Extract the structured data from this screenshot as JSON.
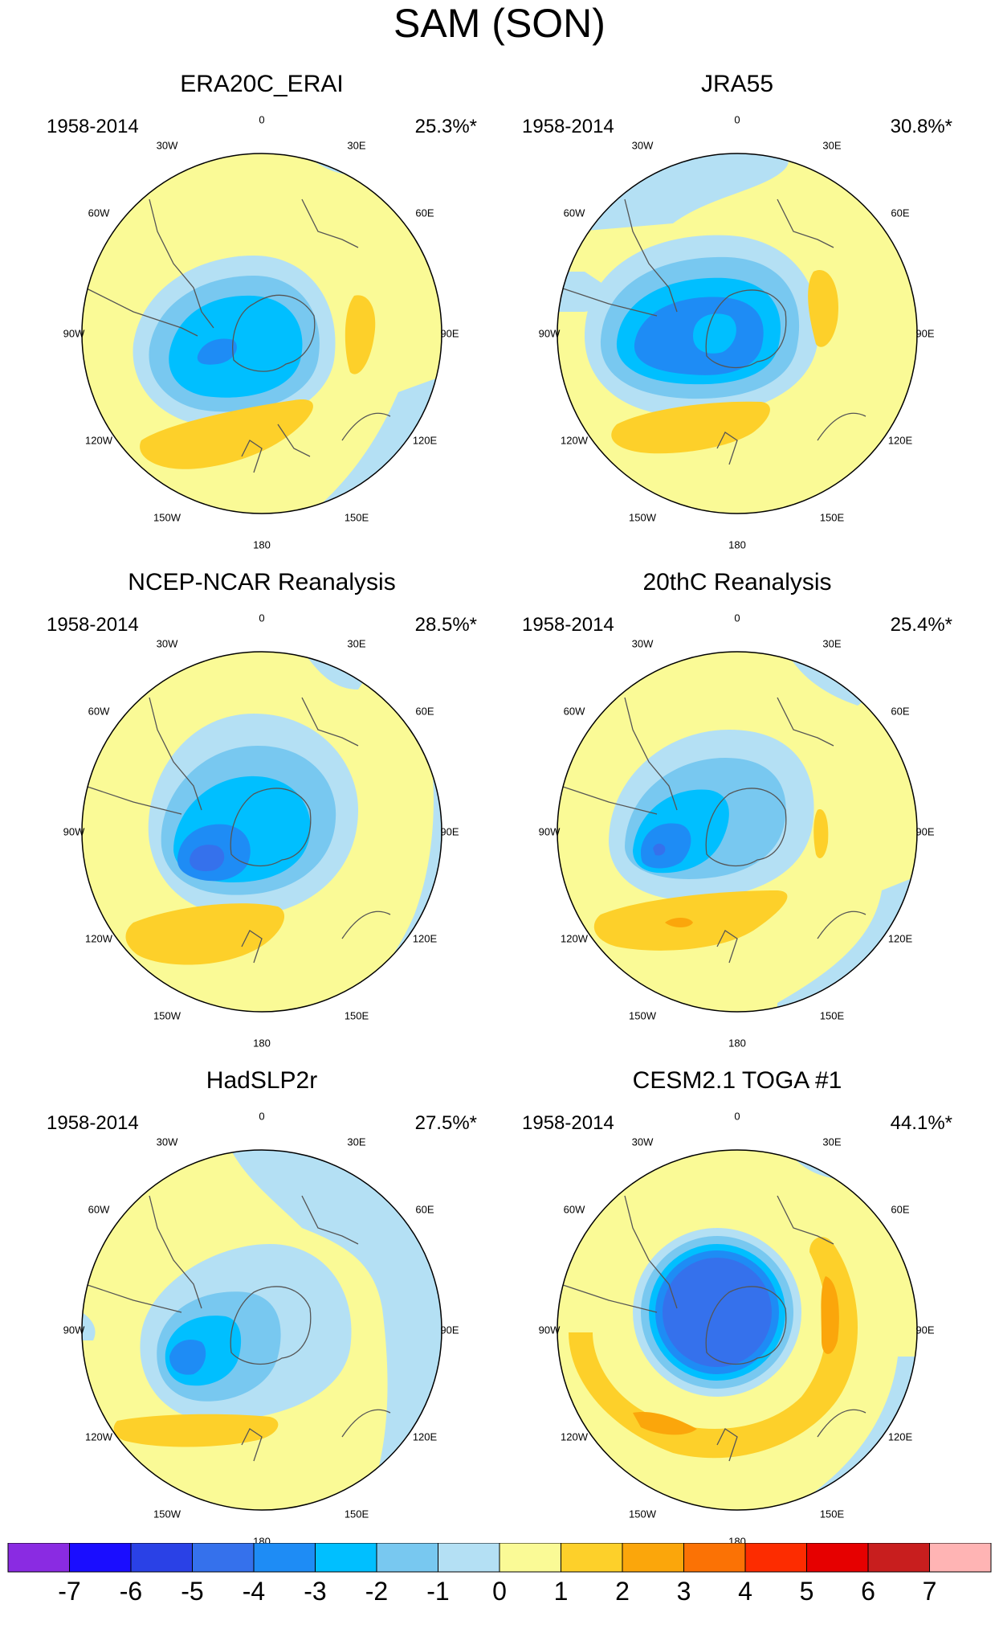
{
  "title": "SAM (SON)",
  "lon_labels": [
    "0",
    "30E",
    "60E",
    "90E",
    "120E",
    "150E",
    "180",
    "150W",
    "120W",
    "90W",
    "60W",
    "30W"
  ],
  "panels": [
    {
      "name": "ERA20C_ERAI",
      "years": "1958-2014",
      "variance": "25.3%*"
    },
    {
      "name": "JRA55",
      "years": "1958-2014",
      "variance": "30.8%*"
    },
    {
      "name": "NCEP-NCAR Reanalysis",
      "years": "1958-2014",
      "variance": "28.5%*"
    },
    {
      "name": "20thC Reanalysis",
      "years": "1958-2014",
      "variance": "25.4%*"
    },
    {
      "name": "HadSLP2r",
      "years": "1958-2014",
      "variance": "27.5%*"
    },
    {
      "name": "CESM2.1 TOGA #1",
      "years": "1958-2014",
      "variance": "44.1%*"
    }
  ],
  "colorbar": {
    "labels": [
      "-7",
      "-6",
      "-5",
      "-4",
      "-3",
      "-2",
      "-1",
      "0",
      "1",
      "2",
      "3",
      "4",
      "5",
      "6",
      "7"
    ],
    "colors": [
      "#8a2be2",
      "#1a0dff",
      "#2a41e6",
      "#3571ec",
      "#1e8cf5",
      "#00bfff",
      "#78c8f0",
      "#b4e0f4",
      "#fafa96",
      "#fdd02a",
      "#fba60b",
      "#fb7205",
      "#fd2c00",
      "#e60000",
      "#c81e1e",
      "#ffb4b4"
    ]
  },
  "colors": {
    "yellow": "#fafa96",
    "lightblue": "#b4e0f4",
    "midblue": "#78c8f0",
    "cyan": "#00bfff",
    "blue3": "#1e8cf5",
    "blue4": "#3571ec",
    "gold": "#fdd02a",
    "orange": "#fba60b",
    "darkorange": "#fb7205"
  }
}
